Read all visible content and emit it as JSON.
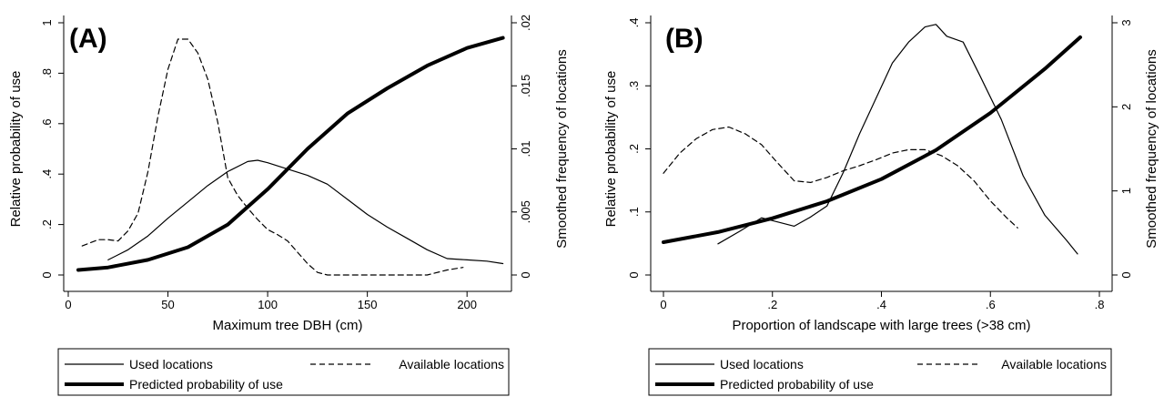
{
  "chart_data": [
    {
      "type": "line",
      "panel_label": "(A)",
      "xlabel": "Maximum tree DBH (cm)",
      "ylabel": "Relative probability of use",
      "y2label": "Smoothed frequency of locations",
      "xlim": [
        0,
        220
      ],
      "ylim": [
        0,
        1
      ],
      "y2lim": [
        0,
        0.02
      ],
      "xticks": [
        0,
        50,
        100,
        150,
        200
      ],
      "xtick_labels": [
        "0",
        "50",
        "100",
        "150",
        "200"
      ],
      "yticks": [
        0,
        0.2,
        0.4,
        0.6,
        0.8,
        1
      ],
      "ytick_labels": [
        "0",
        ".2",
        ".4",
        ".6",
        ".8",
        "1"
      ],
      "y2ticks": [
        0,
        0.005,
        0.01,
        0.015,
        0.02
      ],
      "y2tick_labels": [
        "0",
        ".005",
        ".01",
        ".015",
        ".02"
      ],
      "grid": false,
      "legend_position": "bottom",
      "series": [
        {
          "name": "Used locations",
          "axis": "right",
          "style": "solid-thin",
          "x": [
            20,
            30,
            40,
            50,
            60,
            70,
            80,
            90,
            95,
            100,
            110,
            120,
            130,
            140,
            150,
            160,
            170,
            180,
            190,
            200,
            210,
            218
          ],
          "y": [
            0.0012,
            0.002,
            0.0031,
            0.0045,
            0.0058,
            0.0071,
            0.0082,
            0.009,
            0.0091,
            0.0089,
            0.0084,
            0.0079,
            0.0072,
            0.006,
            0.0048,
            0.0038,
            0.0029,
            0.002,
            0.0013,
            0.0012,
            0.0011,
            0.0009
          ]
        },
        {
          "name": "Available locations",
          "axis": "right",
          "style": "dashed",
          "x": [
            7,
            15,
            20,
            25,
            30,
            35,
            40,
            45,
            50,
            55,
            60,
            65,
            70,
            75,
            80,
            85,
            90,
            95,
            100,
            105,
            110,
            115,
            120,
            125,
            130,
            135,
            140,
            150,
            160,
            170,
            180,
            190,
            198
          ],
          "y": [
            0.0023,
            0.0028,
            0.0028,
            0.0027,
            0.0035,
            0.0049,
            0.0082,
            0.0126,
            0.0163,
            0.0187,
            0.0187,
            0.0176,
            0.0155,
            0.0121,
            0.0077,
            0.0063,
            0.0053,
            0.0044,
            0.0036,
            0.0032,
            0.0027,
            0.0018,
            0.0009,
            0.0002,
            0.0,
            0.0,
            0.0,
            0.0,
            0.0,
            0.0,
            0.0,
            0.0004,
            0.0006
          ]
        },
        {
          "name": "Predicted probability of use",
          "axis": "left",
          "style": "solid-thick",
          "x": [
            5,
            20,
            40,
            60,
            80,
            100,
            120,
            140,
            160,
            180,
            200,
            218
          ],
          "y": [
            0.02,
            0.03,
            0.06,
            0.11,
            0.2,
            0.34,
            0.5,
            0.64,
            0.74,
            0.83,
            0.9,
            0.94
          ]
        }
      ]
    },
    {
      "type": "line",
      "panel_label": "(B)",
      "xlabel": "Proportion of landscape with large trees (>38 cm)",
      "ylabel": "Relative probability of use",
      "y2label": "Smoothed frequency of locations",
      "xlim": [
        0,
        0.8
      ],
      "ylim": [
        0,
        0.4
      ],
      "y2lim": [
        0,
        3
      ],
      "xticks": [
        0,
        0.2,
        0.4,
        0.6,
        0.8
      ],
      "xtick_labels": [
        "0",
        ".2",
        ".4",
        ".6",
        ".8"
      ],
      "yticks": [
        0,
        0.1,
        0.2,
        0.3,
        0.4
      ],
      "ytick_labels": [
        "0",
        ".1",
        ".2",
        ".3",
        ".4"
      ],
      "y2ticks": [
        0,
        1,
        2,
        3
      ],
      "y2tick_labels": [
        "0",
        "1",
        "2",
        "3"
      ],
      "grid": false,
      "legend_position": "bottom",
      "series": [
        {
          "name": "Used locations",
          "axis": "right",
          "style": "solid-thin",
          "x": [
            0.1,
            0.14,
            0.18,
            0.21,
            0.24,
            0.27,
            0.3,
            0.33,
            0.36,
            0.39,
            0.42,
            0.45,
            0.48,
            0.5,
            0.52,
            0.55,
            0.58,
            0.62,
            0.66,
            0.7,
            0.74,
            0.76
          ],
          "y": [
            0.37,
            0.52,
            0.68,
            0.63,
            0.58,
            0.69,
            0.82,
            1.22,
            1.68,
            2.1,
            2.52,
            2.77,
            2.95,
            2.98,
            2.84,
            2.77,
            2.38,
            1.85,
            1.18,
            0.71,
            0.41,
            0.25
          ]
        },
        {
          "name": "Available locations",
          "axis": "right",
          "style": "dashed",
          "x": [
            0.0,
            0.03,
            0.06,
            0.09,
            0.12,
            0.15,
            0.18,
            0.21,
            0.24,
            0.27,
            0.3,
            0.33,
            0.36,
            0.39,
            0.42,
            0.45,
            0.48,
            0.51,
            0.54,
            0.57,
            0.6,
            0.63,
            0.65
          ],
          "y": [
            1.21,
            1.45,
            1.62,
            1.73,
            1.76,
            1.68,
            1.55,
            1.33,
            1.12,
            1.1,
            1.16,
            1.24,
            1.3,
            1.37,
            1.45,
            1.49,
            1.49,
            1.42,
            1.3,
            1.12,
            0.88,
            0.68,
            0.56
          ]
        },
        {
          "name": "Predicted probability of use",
          "axis": "left",
          "style": "solid-thick",
          "x": [
            0.0,
            0.1,
            0.2,
            0.3,
            0.4,
            0.5,
            0.6,
            0.7,
            0.765
          ],
          "y": [
            0.052,
            0.068,
            0.09,
            0.117,
            0.152,
            0.198,
            0.257,
            0.327,
            0.377
          ]
        }
      ]
    }
  ],
  "legends": [
    {
      "items": [
        {
          "label": "Used locations",
          "style": "solid-thin"
        },
        {
          "label": "Available locations",
          "style": "dashed"
        },
        {
          "label": "Predicted probability of use",
          "style": "solid-thick"
        }
      ]
    },
    {
      "items": [
        {
          "label": "Used locations",
          "style": "solid-thin"
        },
        {
          "label": "Available locations",
          "style": "dashed"
        },
        {
          "label": "Predicted probability of use",
          "style": "solid-thick"
        }
      ]
    }
  ],
  "colors": {
    "line": "#000000",
    "background": "#ffffff"
  }
}
